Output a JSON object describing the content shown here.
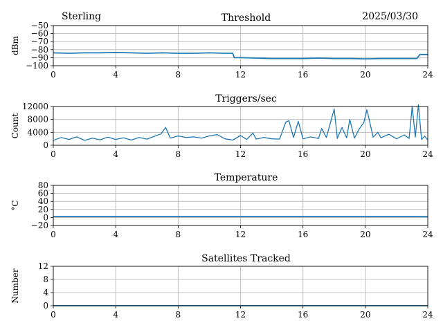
{
  "header": {
    "station": "Sterling",
    "date": "2025/03/30"
  },
  "colors": {
    "series": "#1f77b4",
    "grid": "#b0b0b0",
    "axis": "#000000"
  },
  "chart_data": [
    {
      "type": "line",
      "title": "Threshold",
      "xlabel": "",
      "ylabel": "dBm",
      "xlim": [
        0,
        24
      ],
      "ylim": [
        -100,
        -50
      ],
      "xticks": [
        0,
        4,
        8,
        12,
        16,
        20,
        24
      ],
      "yticks": [
        -50,
        -60,
        -70,
        -80,
        -90,
        -100
      ],
      "ytick_labels": [
        "−50",
        "−60",
        "−70",
        "−80",
        "−90",
        "−100"
      ],
      "grid": true,
      "series": [
        {
          "x": [
            0,
            1,
            2,
            3,
            4,
            5,
            6,
            7,
            8,
            9,
            10,
            11,
            11.5,
            11.6,
            12,
            13,
            14,
            15,
            16,
            17,
            18,
            19,
            20,
            21,
            22,
            23,
            23.3,
            23.5,
            24
          ],
          "y": [
            -84,
            -84.5,
            -84,
            -84,
            -83.5,
            -84,
            -84.5,
            -84,
            -84.5,
            -84.5,
            -84,
            -84.5,
            -84.5,
            -90,
            -90,
            -90.5,
            -91,
            -91,
            -91,
            -90.5,
            -91,
            -91,
            -91.5,
            -91,
            -91,
            -91,
            -91,
            -86,
            -86
          ]
        }
      ]
    },
    {
      "type": "line",
      "title": "Triggers/sec",
      "xlabel": "",
      "ylabel": "Count",
      "xlim": [
        0,
        24
      ],
      "ylim": [
        0,
        12000
      ],
      "xticks": [
        0,
        4,
        8,
        12,
        16,
        20,
        24
      ],
      "yticks": [
        0,
        4000,
        8000,
        12000
      ],
      "grid": true,
      "series": [
        {
          "x": [
            0,
            0.5,
            1,
            1.5,
            2,
            2.5,
            3,
            3.5,
            4,
            4.5,
            5,
            5.5,
            6,
            6.5,
            6.9,
            7.2,
            7.5,
            8,
            8.5,
            9,
            9.5,
            10,
            10.5,
            11,
            11.5,
            12,
            12.4,
            12.8,
            13,
            13.5,
            14,
            14.5,
            14.9,
            15.1,
            15.4,
            15.7,
            16,
            16.5,
            17,
            17.2,
            17.5,
            18,
            18.2,
            18.5,
            18.8,
            19,
            19.3,
            19.6,
            19.9,
            20.1,
            20.5,
            20.8,
            21,
            21.5,
            22,
            22.5,
            22.8,
            23,
            23.2,
            23.4,
            23.6,
            23.8,
            24
          ],
          "y": [
            1500,
            2400,
            1800,
            2600,
            1500,
            2200,
            1700,
            2500,
            1800,
            2300,
            1600,
            2400,
            1900,
            2800,
            3500,
            5500,
            2200,
            2900,
            2400,
            2600,
            2200,
            2900,
            3300,
            2000,
            1600,
            3000,
            1800,
            3800,
            1900,
            2400,
            2000,
            1900,
            7200,
            7600,
            2400,
            7400,
            2000,
            2600,
            2100,
            5200,
            2400,
            11200,
            2100,
            5500,
            2300,
            8000,
            2200,
            5000,
            7000,
            11000,
            2500,
            4000,
            2300,
            3400,
            2000,
            3200,
            2100,
            12000,
            2500,
            12500,
            1800,
            2800,
            1600
          ]
        }
      ]
    },
    {
      "type": "line",
      "title": "Temperature",
      "xlabel": "",
      "ylabel": "°C",
      "xlim": [
        0,
        24
      ],
      "ylim": [
        -20,
        80
      ],
      "xticks": [
        0,
        4,
        8,
        12,
        16,
        20,
        24
      ],
      "yticks": [
        -20,
        0,
        20,
        40,
        60,
        80
      ],
      "ytick_labels": [
        "−20",
        "0",
        "20",
        "40",
        "60",
        "80"
      ],
      "grid": true,
      "series": [
        {
          "x": [
            0,
            24
          ],
          "y": [
            2,
            2
          ]
        }
      ]
    },
    {
      "type": "line",
      "title": "Satellites Tracked",
      "xlabel": "",
      "ylabel": "Number",
      "xlim": [
        0,
        24
      ],
      "ylim": [
        0,
        12
      ],
      "xticks": [
        0,
        4,
        8,
        12,
        16,
        20,
        24
      ],
      "yticks": [
        0,
        4,
        8,
        12
      ],
      "grid": true,
      "series": [
        {
          "x": [
            0,
            24
          ],
          "y": [
            0,
            0
          ]
        }
      ]
    }
  ]
}
